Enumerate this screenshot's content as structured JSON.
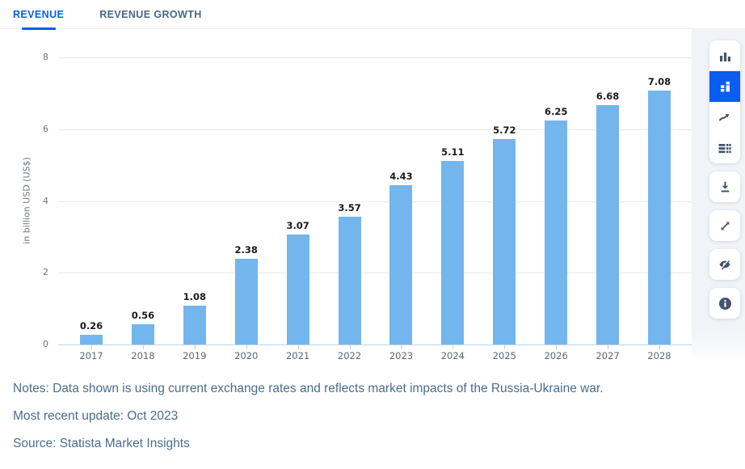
{
  "accent_color": "#0b5cf0",
  "tabs": [
    {
      "label": "REVENUE",
      "active": true
    },
    {
      "label": "REVENUE GROWTH",
      "active": false
    }
  ],
  "chart_data": {
    "type": "bar",
    "categories": [
      "2017",
      "2018",
      "2019",
      "2020",
      "2021",
      "2022",
      "2023",
      "2024",
      "2025",
      "2026",
      "2027",
      "2028"
    ],
    "values": [
      0.26,
      0.56,
      1.08,
      2.38,
      3.07,
      3.57,
      4.43,
      5.11,
      5.72,
      6.25,
      6.68,
      7.08
    ],
    "value_labels": [
      "0.26",
      "0.56",
      "1.08",
      "2.38",
      "3.07",
      "3.57",
      "4.43",
      "5.11",
      "5.72",
      "6.25",
      "6.68",
      "7.08"
    ],
    "title": "",
    "xlabel": "",
    "ylabel": "in billion USD (US$)",
    "ylim": [
      0,
      8
    ],
    "yticks": [
      0,
      2,
      4,
      6,
      8
    ],
    "grid": "horizontal",
    "legend": "none",
    "bar_color": "#73b6ee"
  },
  "toolbar": {
    "view_icons": [
      {
        "name": "bar-chart-icon",
        "active": false
      },
      {
        "name": "column-blocks-icon",
        "active": true
      },
      {
        "name": "trend-arrow-icon",
        "active": false
      },
      {
        "name": "data-table-icon",
        "active": false
      }
    ],
    "action_icons": [
      {
        "name": "download-icon"
      },
      {
        "name": "expand-icon"
      },
      {
        "name": "hide-eye-icon"
      },
      {
        "name": "info-icon"
      }
    ]
  },
  "notes": {
    "line1": "Notes: Data shown is using current exchange rates and reflects market impacts of the Russia-Ukraine war.",
    "line2": "Most recent update: Oct 2023",
    "line3": "Source: Statista Market Insights"
  }
}
